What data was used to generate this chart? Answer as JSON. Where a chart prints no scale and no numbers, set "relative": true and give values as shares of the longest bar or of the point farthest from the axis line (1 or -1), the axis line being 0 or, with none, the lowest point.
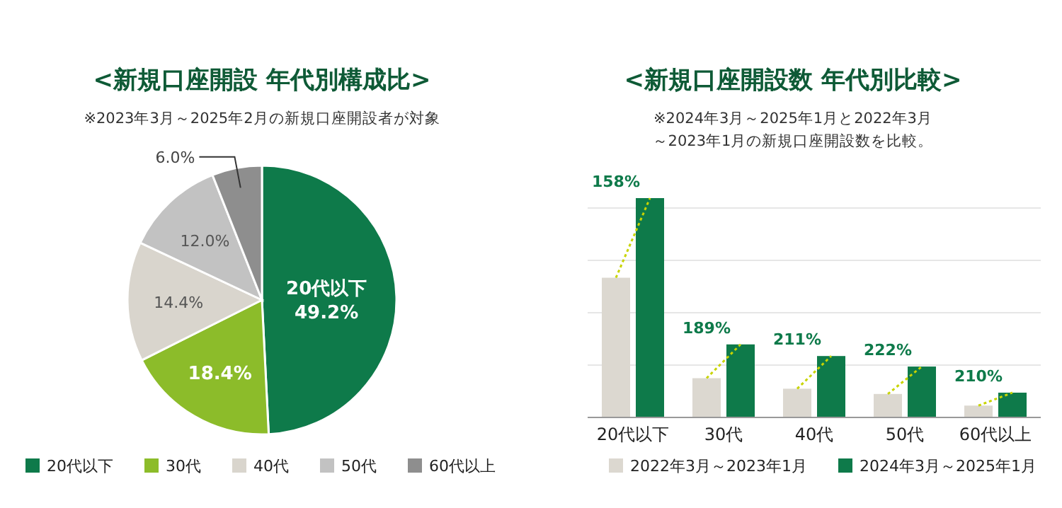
{
  "chart_data": [
    {
      "type": "pie",
      "title": "<新規口座開設 年代別構成比>",
      "subtitle": "※2023年3月～2025年2月の新規口座開設者が対象",
      "categories": [
        "20代以下",
        "30代",
        "40代",
        "50代",
        "60代以上"
      ],
      "values": [
        49.2,
        18.4,
        14.4,
        12.0,
        6.0
      ],
      "colors": [
        "#0e7a4a",
        "#8cbc2a",
        "#d9d5cd",
        "#c2c2c2",
        "#8e8e8e"
      ],
      "value_labels": [
        "20代以下\n49.2%",
        "18.4%",
        "14.4%",
        "12.0%",
        "6.0%"
      ],
      "legend": "bottom"
    },
    {
      "type": "bar",
      "title": "<新規口座開設数 年代別比較>",
      "subtitle": "※2024年3月～2025年1月と2022年3月～2023年1月の新規口座開設数を比較。",
      "categories": [
        "20代以下",
        "30代",
        "40代",
        "50代",
        "60代以上"
      ],
      "relative": true,
      "series": [
        {
          "name": "2022年3月～2023年1月",
          "color": "#dcd8d0",
          "values": [
            0.637,
            0.179,
            0.131,
            0.107,
            0.054
          ]
        },
        {
          "name": "2024年3月～2025年1月",
          "color": "#0e7a4a",
          "values": [
            1,
            0.333,
            0.28,
            0.232,
            0.113
          ]
        }
      ],
      "annotations": [
        {
          "text": "158%",
          "x": "20代以下",
          "y": 1
        },
        {
          "text": "189%",
          "x": "30代",
          "y": 0.333
        },
        {
          "text": "211%",
          "x": "40代",
          "y": 0.28
        },
        {
          "text": "222%",
          "x": "50代",
          "y": 0.232
        },
        {
          "text": "210%",
          "x": "60代以上",
          "y": 0.113
        }
      ],
      "grid": "y",
      "legend": "bottom"
    }
  ]
}
